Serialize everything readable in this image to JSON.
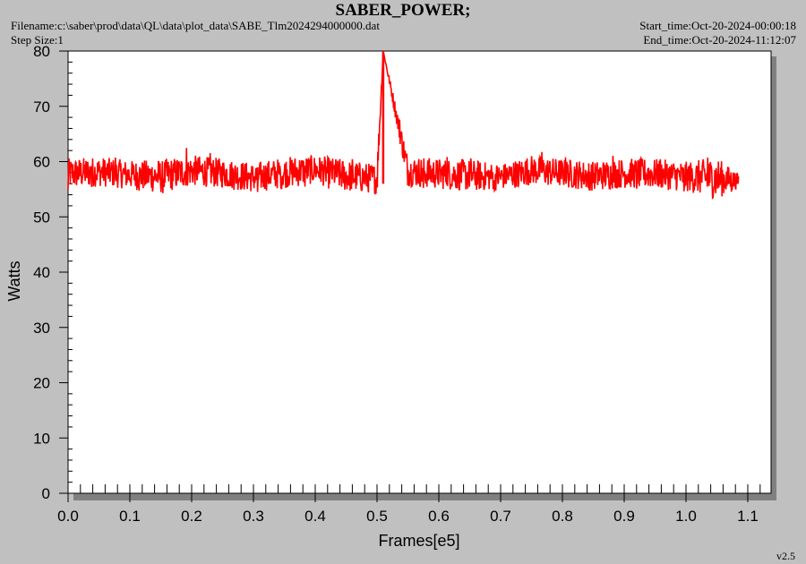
{
  "header": {
    "title": "SABER_POWER;",
    "filename": "Filename:c:\\saber\\prod\\data\\QL\\data\\plot_data\\SABE_Tlm2024294000000.dat",
    "step_size": "Step Size:1",
    "start_time": "Start_time:Oct-20-2024-00:00:18",
    "end_time": "End_time:Oct-20-2024-11:12:07"
  },
  "version": "v2.5",
  "colors": {
    "background": "#c0c0c0",
    "plot_area": "#ffffff",
    "series": "#ff0000",
    "shadow": "#808080"
  },
  "chart_data": {
    "type": "line",
    "xlabel": "Frames[e5]",
    "ylabel": "Watts",
    "xlim": [
      0,
      1.14
    ],
    "ylim": [
      0,
      80
    ],
    "xticks": [
      "0.0",
      "0.1",
      "0.2",
      "0.3",
      "0.4",
      "0.5",
      "0.6",
      "0.7",
      "0.8",
      "0.9",
      "1.0",
      "1.1"
    ],
    "yticks": [
      "0",
      "10",
      "20",
      "30",
      "40",
      "50",
      "60",
      "70",
      "80"
    ],
    "grid": false,
    "series": [
      {
        "x": [
          0.0,
          0.05,
          0.1,
          0.15,
          0.2,
          0.25,
          0.3,
          0.35,
          0.4,
          0.45,
          0.5,
          0.51,
          0.55,
          0.6,
          0.65,
          0.7,
          0.75,
          0.8,
          0.85,
          0.9,
          0.95,
          1.0,
          1.05,
          1.085
        ],
        "y": [
          57.8,
          58.2,
          57.6,
          57.3,
          58.4,
          57.9,
          57.1,
          58.0,
          58.6,
          57.4,
          56.9,
          80,
          58.3,
          57.8,
          57.5,
          57.2,
          58.5,
          57.9,
          57.4,
          57.9,
          57.8,
          57.3,
          57.0,
          56.5
        ],
        "min": [
          55.0,
          55.5,
          55.0,
          54.2,
          55.6,
          55.2,
          54.4,
          55.2,
          55.6,
          54.5,
          54.2,
          56.0,
          55.5,
          55.0,
          54.6,
          54.8,
          55.8,
          55.3,
          54.7,
          55.2,
          55.0,
          54.6,
          53.2,
          55.2
        ],
        "max": [
          62.0,
          61.2,
          60.3,
          60.8,
          62.8,
          60.7,
          60.1,
          61.0,
          61.2,
          60.4,
          60.6,
          80,
          61.3,
          60.9,
          60.6,
          60.3,
          62.2,
          60.8,
          60.6,
          61.3,
          60.5,
          60.1,
          61.0,
          60.6
        ]
      }
    ]
  }
}
